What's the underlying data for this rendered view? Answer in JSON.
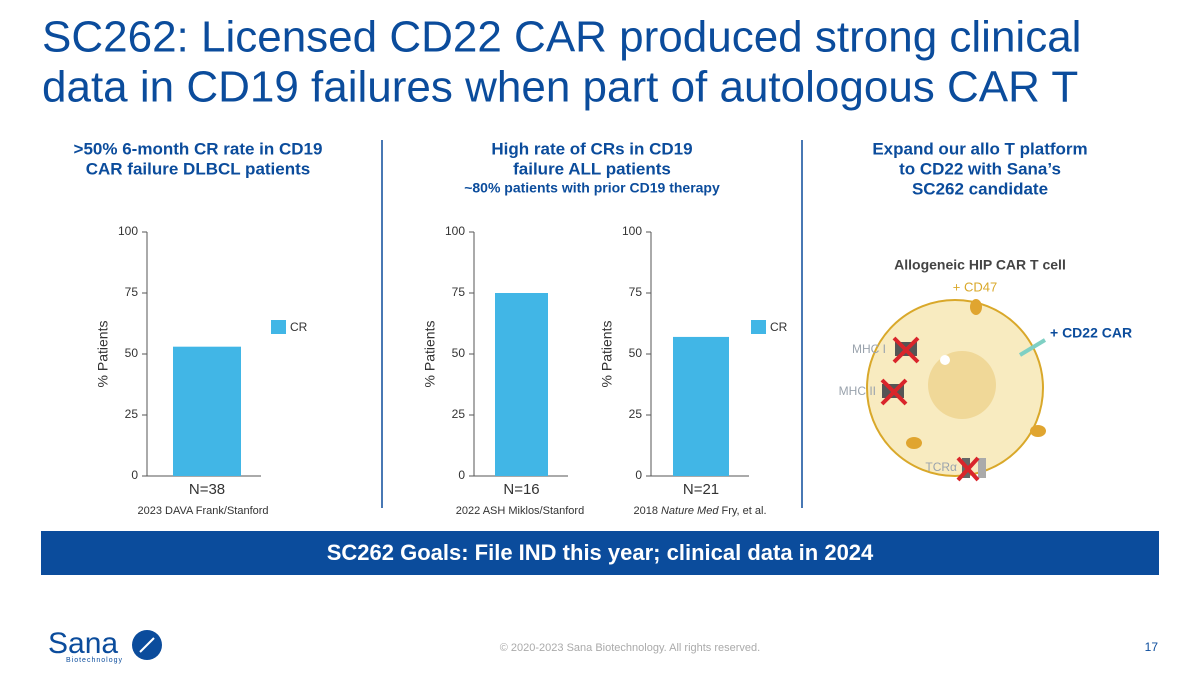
{
  "title": [
    "SC262: Licensed CD22 CAR produced strong clinical",
    "data in CD19 failures when part of autologous CAR T"
  ],
  "panels": [
    {
      "heading": [
        ">50% 6-month CR rate in CD19",
        "CAR failure DLBCL patients"
      ]
    },
    {
      "heading": [
        "High rate of CRs in CD19",
        "failure ALL patients"
      ],
      "subheading": "~80% patients with prior CD19 therapy"
    },
    {
      "heading": [
        "Expand our allo T platform",
        "to CD22 with Sana’s",
        "SC262 candidate"
      ]
    }
  ],
  "chart_data": [
    {
      "type": "bar",
      "categories": [
        "N=38"
      ],
      "series": [
        {
          "name": "CR",
          "color": "#41b6e6",
          "values": [
            53
          ]
        }
      ],
      "ylabel": "% Patients",
      "ylim": [
        0,
        100
      ],
      "yticks": [
        0,
        25,
        50,
        75,
        100
      ],
      "legend": "right",
      "source": [
        "2023 DAVA Frank/Stanford"
      ]
    },
    {
      "type": "bar",
      "categories": [
        "N=16"
      ],
      "series": [
        {
          "color": "#41b6e6",
          "values": [
            75
          ]
        }
      ],
      "ylabel": "% Patients",
      "ylim": [
        0,
        100
      ],
      "yticks": [
        0,
        25,
        50,
        75,
        100
      ],
      "source": [
        "2022 ASH Miklos/Stanford"
      ]
    },
    {
      "type": "bar",
      "categories": [
        "N=21"
      ],
      "series": [
        {
          "name": "CR",
          "color": "#41b6e6",
          "values": [
            57
          ]
        }
      ],
      "ylabel": "% Patients",
      "ylim": [
        0,
        100
      ],
      "yticks": [
        0,
        25,
        50,
        75,
        100
      ],
      "legend": "right",
      "source": [
        "2018",
        "Nature Med",
        "Fry, et al."
      ]
    }
  ],
  "diagram": {
    "title": "Allogeneic HIP CAR T cell",
    "labels": {
      "cd47": "+ CD47",
      "cd22": "+ CD22 CAR",
      "mhc1": "MHC I",
      "mhc2": "MHC II",
      "tcr": "TCRα"
    }
  },
  "banner": "SC262 Goals: File IND this year; clinical data in 2024",
  "footer": {
    "logo": "Sana",
    "logo_sub": "Biotechnology",
    "copyright": "© 2020-2023 Sana Biotechnology. All rights reserved.",
    "page": "17"
  }
}
